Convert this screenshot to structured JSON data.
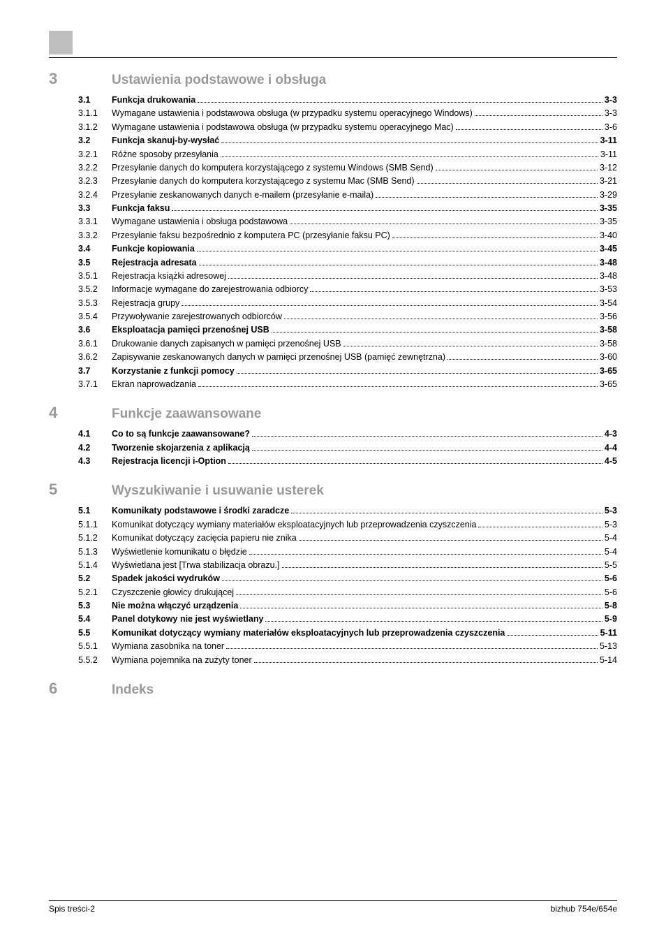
{
  "footer": {
    "left": "Spis treści-2",
    "right": "bizhub 754e/654e"
  },
  "sections": [
    {
      "num": "3",
      "title": "Ustawienia podstawowe i obsługa",
      "first": true,
      "entries": [
        {
          "num": "3.1",
          "title": "Funkcja drukowania ",
          "page": "3-3",
          "bold": true
        },
        {
          "num": "3.1.1",
          "title": "Wymagane ustawienia i podstawowa obsługa (w przypadku systemu operacyjnego Windows)",
          "page": "3-3"
        },
        {
          "num": "3.1.2",
          "title": "Wymagane ustawienia i podstawowa obsługa (w przypadku systemu operacyjnego Mac)",
          "page": "3-6"
        },
        {
          "num": "3.2",
          "title": "Funkcja skanuj-by-wysłać ",
          "page": "3-11",
          "bold": true
        },
        {
          "num": "3.2.1",
          "title": "Różne sposoby przesyłania ",
          "page": "3-11"
        },
        {
          "num": "3.2.2",
          "title": "Przesyłanie danych do komputera korzystającego z systemu Windows (SMB Send)",
          "page": "3-12"
        },
        {
          "num": "3.2.3",
          "title": "Przesyłanie danych do komputera korzystającego z systemu Mac (SMB Send)",
          "page": "3-21"
        },
        {
          "num": "3.2.4",
          "title": "Przesyłanie zeskanowanych danych e-mailem (przesyłanie e-maila)",
          "page": "3-29"
        },
        {
          "num": "3.3",
          "title": "Funkcja faksu ",
          "page": "3-35",
          "bold": true
        },
        {
          "num": "3.3.1",
          "title": "Wymagane ustawienia i obsługa podstawowa",
          "page": "3-35"
        },
        {
          "num": "3.3.2",
          "title": "Przesyłanie faksu bezpośrednio z komputera PC (przesyłanie faksu PC)",
          "page": "3-40"
        },
        {
          "num": "3.4",
          "title": "Funkcje kopiowania",
          "page": "3-45",
          "bold": true
        },
        {
          "num": "3.5",
          "title": "Rejestracja adresata",
          "page": "3-48",
          "bold": true
        },
        {
          "num": "3.5.1",
          "title": "Rejestracja książki adresowej",
          "page": "3-48"
        },
        {
          "num": "3.5.2",
          "title": "Informacje wymagane do zarejestrowania odbiorcy ",
          "page": "3-53"
        },
        {
          "num": "3.5.3",
          "title": "Rejestracja grupy ",
          "page": "3-54"
        },
        {
          "num": "3.5.4",
          "title": "Przywoływanie zarejestrowanych odbiorców ",
          "page": "3-56"
        },
        {
          "num": "3.6",
          "title": "Eksploatacja pamięci przenośnej USB",
          "page": "3-58",
          "bold": true
        },
        {
          "num": "3.6.1",
          "title": "Drukowanie danych zapisanych w pamięci przenośnej USB",
          "page": "3-58"
        },
        {
          "num": "3.6.2",
          "title": "Zapisywanie zeskanowanych danych w pamięci przenośnej USB (pamięć zewnętrzna) ",
          "page": "3-60"
        },
        {
          "num": "3.7",
          "title": "Korzystanie z funkcji pomocy",
          "page": "3-65",
          "bold": true
        },
        {
          "num": "3.7.1",
          "title": "Ekran naprowadzania ",
          "page": "3-65"
        }
      ]
    },
    {
      "num": "4",
      "title": "Funkcje zaawansowane",
      "entries": [
        {
          "num": "4.1",
          "title": "Co to są funkcje zaawansowane?",
          "page": "4-3",
          "bold": true
        },
        {
          "num": "4.2",
          "title": "Tworzenie skojarzenia z aplikacją ",
          "page": "4-4",
          "bold": true
        },
        {
          "num": "4.3",
          "title": "Rejestracja licencji i-Option",
          "page": "4-5",
          "bold": true
        }
      ]
    },
    {
      "num": "5",
      "title": "Wyszukiwanie i usuwanie usterek",
      "entries": [
        {
          "num": "5.1",
          "title": "Komunikaty podstawowe i środki zaradcze ",
          "page": "5-3",
          "bold": true
        },
        {
          "num": "5.1.1",
          "title": "Komunikat dotyczący wymiany materiałów eksploatacyjnych lub przeprowadzenia czyszczenia ",
          "page": "5-3"
        },
        {
          "num": "5.1.2",
          "title": "Komunikat dotyczący zacięcia papieru nie znika ",
          "page": "5-4"
        },
        {
          "num": "5.1.3",
          "title": "Wyświetlenie komunikatu o błędzie",
          "page": "5-4"
        },
        {
          "num": "5.1.4",
          "title": "Wyświetlana jest [Trwa stabilizacja obrazu.]",
          "page": "5-5"
        },
        {
          "num": "5.2",
          "title": "Spadek jakości wydruków ",
          "page": "5-6",
          "bold": true
        },
        {
          "num": "5.2.1",
          "title": "Czyszczenie głowicy drukującej ",
          "page": "5-6"
        },
        {
          "num": "5.3",
          "title": "Nie można włączyć urządzenia ",
          "page": "5-8",
          "bold": true
        },
        {
          "num": "5.4",
          "title": "Panel dotykowy nie jest wyświetlany",
          "page": "5-9",
          "bold": true
        },
        {
          "num": "5.5",
          "title": "Komunikat dotyczący wymiany materiałów eksploatacyjnych lub przeprowadzenia czyszczenia ",
          "page": "5-11",
          "bold": true,
          "wrap": true
        },
        {
          "num": "5.5.1",
          "title": "Wymiana zasobnika na toner",
          "page": "5-13"
        },
        {
          "num": "5.5.2",
          "title": "Wymiana pojemnika na zużyty toner ",
          "page": "5-14"
        }
      ]
    },
    {
      "num": "6",
      "title": "Indeks",
      "entries": []
    }
  ]
}
